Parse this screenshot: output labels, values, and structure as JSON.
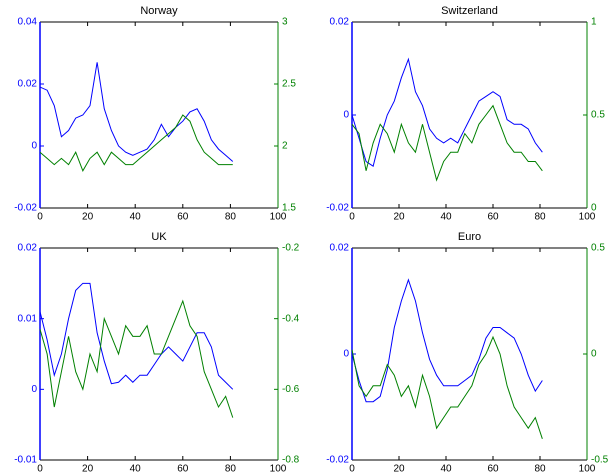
{
  "chart_data": [
    {
      "type": "line",
      "title": "Norway",
      "x": [
        0,
        3,
        6,
        9,
        12,
        15,
        18,
        21,
        24,
        27,
        30,
        33,
        36,
        39,
        42,
        45,
        48,
        51,
        54,
        57,
        60,
        63,
        66,
        69,
        72,
        75,
        78,
        81
      ],
      "xlim": [
        0,
        100
      ],
      "xticks": [
        0,
        20,
        40,
        60,
        80,
        100
      ],
      "ylim": [
        -0.02,
        0.04
      ],
      "yticks": [
        -0.02,
        0,
        0.02,
        0.04
      ],
      "y2lim": [
        1.5,
        3
      ],
      "y2ticks": [
        1.5,
        2,
        2.5,
        3
      ],
      "series": [
        {
          "color": "#0000ff",
          "values": [
            0.019,
            0.018,
            0.013,
            0.003,
            0.005,
            0.009,
            0.01,
            0.013,
            0.027,
            0.012,
            0.005,
            0.0,
            -0.002,
            -0.003,
            -0.002,
            -0.001,
            0.002,
            0.007,
            0.003,
            0.006,
            0.008,
            0.011,
            0.012,
            0.008,
            0.002,
            -0.001,
            -0.003,
            -0.005
          ]
        },
        {
          "color": "#008000",
          "axis": "y2",
          "values": [
            1.95,
            1.9,
            1.85,
            1.9,
            1.85,
            1.95,
            1.8,
            1.9,
            1.95,
            1.85,
            1.95,
            1.9,
            1.85,
            1.85,
            1.9,
            1.95,
            2.0,
            2.05,
            2.1,
            2.15,
            2.25,
            2.2,
            2.05,
            1.95,
            1.9,
            1.85,
            1.85,
            1.85
          ]
        }
      ]
    },
    {
      "type": "line",
      "title": "Switzerland",
      "x": [
        0,
        3,
        6,
        9,
        12,
        15,
        18,
        21,
        24,
        27,
        30,
        33,
        36,
        39,
        42,
        45,
        48,
        51,
        54,
        57,
        60,
        63,
        66,
        69,
        72,
        75,
        78,
        81
      ],
      "xlim": [
        0,
        100
      ],
      "xticks": [
        0,
        20,
        40,
        60,
        80,
        100
      ],
      "ylim": [
        -0.02,
        0.02
      ],
      "yticks": [
        -0.02,
        0,
        0.02
      ],
      "y2lim": [
        0,
        1
      ],
      "y2ticks": [
        0,
        0.5,
        1
      ],
      "series": [
        {
          "color": "#0000ff",
          "values": [
            0,
            -0.005,
            -0.01,
            -0.011,
            -0.005,
            0,
            0.003,
            0.008,
            0.012,
            0.005,
            0.002,
            -0.003,
            -0.005,
            -0.006,
            -0.005,
            -0.006,
            -0.003,
            0,
            0.003,
            0.004,
            0.005,
            0.004,
            -0.001,
            -0.002,
            -0.002,
            -0.003,
            -0.006,
            -0.008
          ]
        },
        {
          "color": "#008000",
          "axis": "y2",
          "values": [
            0.45,
            0.4,
            0.2,
            0.35,
            0.45,
            0.4,
            0.3,
            0.45,
            0.35,
            0.3,
            0.45,
            0.3,
            0.15,
            0.25,
            0.3,
            0.3,
            0.4,
            0.35,
            0.45,
            0.5,
            0.55,
            0.45,
            0.35,
            0.3,
            0.3,
            0.25,
            0.25,
            0.2
          ]
        }
      ]
    },
    {
      "type": "line",
      "title": "UK",
      "x": [
        0,
        3,
        6,
        9,
        12,
        15,
        18,
        21,
        24,
        27,
        30,
        33,
        36,
        39,
        42,
        45,
        48,
        51,
        54,
        57,
        60,
        63,
        66,
        69,
        72,
        75,
        78,
        81
      ],
      "xlim": [
        0,
        100
      ],
      "xticks": [
        0,
        20,
        40,
        60,
        80,
        100
      ],
      "ylim": [
        -0.01,
        0.02
      ],
      "yticks": [
        -0.01,
        0,
        0.01,
        0.02
      ],
      "y2lim": [
        -0.8,
        -0.2
      ],
      "y2ticks": [
        -0.8,
        -0.6,
        -0.4,
        -0.2
      ],
      "series": [
        {
          "color": "#0000ff",
          "values": [
            0.011,
            0.007,
            0.002,
            0.005,
            0.01,
            0.014,
            0.015,
            0.015,
            0.008,
            0.004,
            0.0008,
            0.001,
            0.002,
            0.001,
            0.002,
            0.002,
            0.0035,
            0.005,
            0.006,
            0.005,
            0.004,
            0.006,
            0.008,
            0.008,
            0.006,
            0.002,
            0.001,
            0.0
          ]
        },
        {
          "color": "#008000",
          "axis": "y2",
          "values": [
            -0.43,
            -0.5,
            -0.65,
            -0.55,
            -0.45,
            -0.55,
            -0.6,
            -0.5,
            -0.55,
            -0.4,
            -0.45,
            -0.5,
            -0.42,
            -0.45,
            -0.45,
            -0.42,
            -0.5,
            -0.5,
            -0.45,
            -0.4,
            -0.35,
            -0.42,
            -0.45,
            -0.55,
            -0.6,
            -0.65,
            -0.62,
            -0.68
          ]
        }
      ]
    },
    {
      "type": "line",
      "title": "Euro",
      "x": [
        0,
        3,
        6,
        9,
        12,
        15,
        18,
        21,
        24,
        27,
        30,
        33,
        36,
        39,
        42,
        45,
        48,
        51,
        54,
        57,
        60,
        63,
        66,
        69,
        72,
        75,
        78,
        81
      ],
      "xlim": [
        0,
        100
      ],
      "xticks": [
        0,
        20,
        40,
        60,
        80,
        100
      ],
      "ylim": [
        -0.02,
        0.02
      ],
      "yticks": [
        -0.02,
        0,
        0.02
      ],
      "y2lim": [
        -0.5,
        0.5
      ],
      "y2ticks": [
        -0.5,
        0,
        0.5
      ],
      "series": [
        {
          "color": "#0000ff",
          "values": [
            0,
            -0.005,
            -0.009,
            -0.009,
            -0.008,
            -0.003,
            0.005,
            0.01,
            0.014,
            0.01,
            0.004,
            -0.001,
            -0.004,
            -0.006,
            -0.006,
            -0.006,
            -0.005,
            -0.004,
            -0.001,
            0.003,
            0.005,
            0.005,
            0.004,
            0.003,
            0.0,
            -0.004,
            -0.007,
            -0.005
          ]
        },
        {
          "color": "#008000",
          "axis": "y2",
          "values": [
            0.02,
            -0.15,
            -0.2,
            -0.15,
            -0.15,
            -0.05,
            -0.1,
            -0.2,
            -0.15,
            -0.25,
            -0.1,
            -0.2,
            -0.35,
            -0.3,
            -0.25,
            -0.25,
            -0.2,
            -0.15,
            -0.05,
            0.0,
            0.08,
            0.0,
            -0.15,
            -0.25,
            -0.3,
            -0.35,
            -0.3,
            -0.4
          ]
        }
      ]
    }
  ]
}
